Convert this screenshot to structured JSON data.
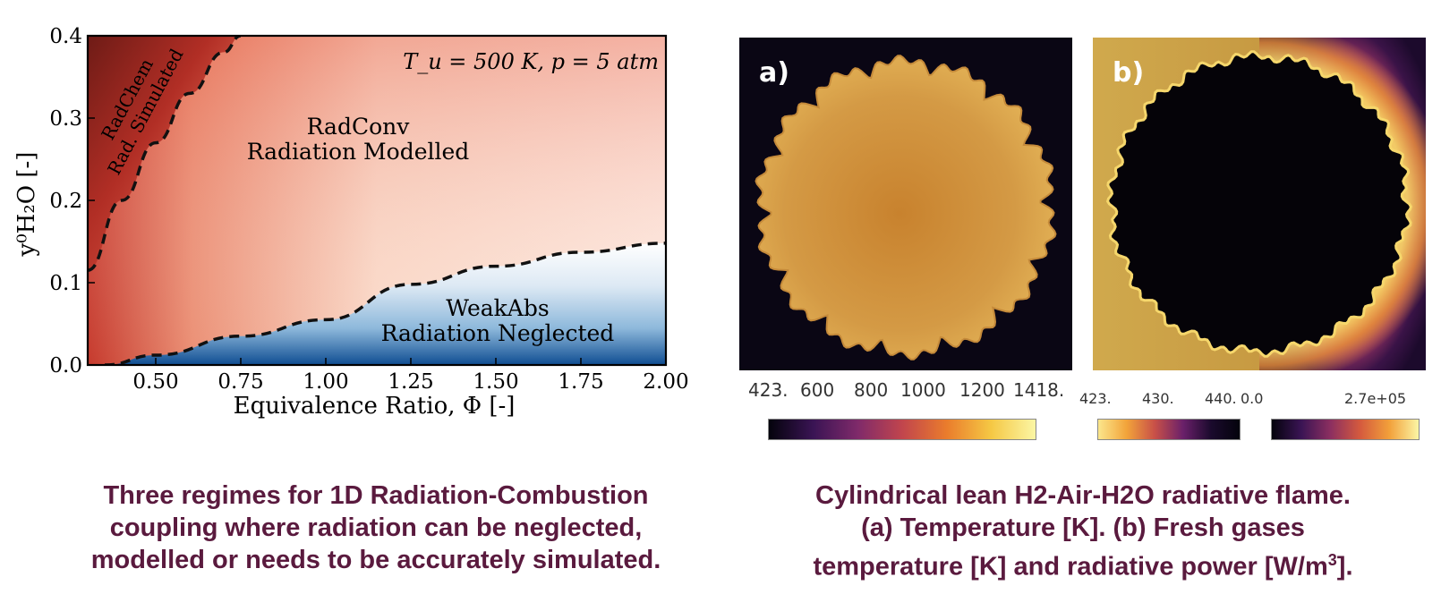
{
  "chart_data": {
    "type": "heatmap",
    "annotation": "T_u = 500 K, p = 5 atm",
    "xlabel": "Equivalence Ratio, Φ [-]",
    "ylabel": "y⁰H₂O [-]",
    "xlim": [
      0.3,
      2.0
    ],
    "ylim": [
      0.0,
      0.4
    ],
    "xticks": [
      "0.50",
      "0.75",
      "1.00",
      "1.25",
      "1.50",
      "1.75",
      "2.00"
    ],
    "yticks": [
      "0.0",
      "0.1",
      "0.2",
      "0.3",
      "0.4"
    ],
    "regions": [
      {
        "name": "RadChem",
        "subtitle": "Rad. Simulated",
        "color": "#c0352b"
      },
      {
        "name": "RadConv",
        "subtitle": "Radiation Modelled",
        "color": "#f6c9b4"
      },
      {
        "name": "WeakAbs",
        "subtitle": "Radiation Neglected",
        "color": "#1f5fa3"
      }
    ],
    "boundary_radchem": {
      "x": [
        0.3,
        0.4,
        0.5,
        0.6,
        0.7,
        0.75
      ],
      "y": [
        0.115,
        0.2,
        0.27,
        0.33,
        0.38,
        0.4
      ]
    },
    "boundary_weakabs": {
      "x": [
        0.35,
        0.5,
        0.75,
        1.0,
        1.25,
        1.5,
        1.75,
        2.0
      ],
      "y": [
        0.0,
        0.012,
        0.035,
        0.055,
        0.098,
        0.12,
        0.137,
        0.148
      ]
    }
  },
  "panel_a": {
    "label": "a)",
    "colorbar_ticks": [
      "423.",
      "600",
      "800",
      "1000",
      "1200",
      "1418."
    ]
  },
  "panel_b": {
    "label": "b)",
    "colorbar_left_ticks": [
      "423.",
      "430.",
      "440."
    ],
    "colorbar_right_ticks": [
      "0.0",
      "2.7e+05"
    ]
  },
  "captions": {
    "left": [
      "Three regimes for 1D Radiation-Combustion",
      "coupling where radiation can be neglected,",
      "modelled or needs to be accurately simulated."
    ],
    "right_line1": "Cylindrical lean H2-Air-H2O radiative flame.",
    "right_line2": "(a) Temperature [K]. (b) Fresh gases",
    "right_line3_prefix": "temperature [K] and radiative power [W/m",
    "right_line3_sup": "3",
    "right_line3_suffix": "]."
  },
  "colors": {
    "caption": "#5a1a3e",
    "inferno_dark": "#0a0614",
    "inferno_mid": "#c0602c",
    "inferno_light": "#f5f08c"
  }
}
